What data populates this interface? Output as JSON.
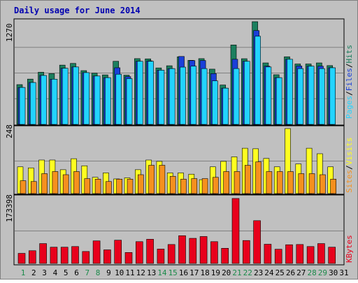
{
  "chart_data": {
    "title": "Daily usage for June 2014",
    "type": "bar",
    "days": [
      1,
      2,
      3,
      4,
      5,
      6,
      7,
      8,
      9,
      10,
      11,
      12,
      13,
      14,
      15,
      16,
      17,
      18,
      19,
      20,
      21,
      22,
      23,
      24,
      25,
      26,
      27,
      28,
      29,
      30,
      31
    ],
    "weekend_days": [
      1,
      7,
      8,
      14,
      15,
      21,
      22,
      28,
      29
    ],
    "top": {
      "ymax_label": "1270",
      "ymax": 1270,
      "legend": [
        "Pages",
        "/",
        "Files",
        "/",
        "Hits"
      ],
      "series": [
        {
          "name": "Hits",
          "color": "#1b7f5e",
          "values": [
            492,
            560,
            645,
            627,
            733,
            754,
            665,
            633,
            612,
            780,
            609,
            813,
            810,
            698,
            725,
            836,
            792,
            813,
            683,
            487,
            982,
            812,
            1270,
            760,
            614,
            836,
            747,
            747,
            760,
            727,
            0
          ]
        },
        {
          "name": "Files",
          "color": "#1a3fd9",
          "values": [
            457,
            518,
            605,
            559,
            694,
            710,
            640,
            598,
            578,
            700,
            590,
            780,
            785,
            670,
            690,
            840,
            789,
            790,
            628,
            448,
            805,
            780,
            1160,
            720,
            578,
            805,
            722,
            720,
            720,
            700,
            0
          ]
        },
        {
          "name": "Pages",
          "color": "#22d3ff",
          "values": [
            457,
            518,
            605,
            559,
            694,
            710,
            640,
            598,
            578,
            620,
            566,
            780,
            780,
            670,
            690,
            708,
            720,
            690,
            538,
            448,
            690,
            780,
            1090,
            710,
            578,
            805,
            690,
            720,
            690,
            700,
            0
          ]
        }
      ]
    },
    "middle": {
      "ymax_label": "248",
      "ymax": 248,
      "legend": [
        "Sites",
        "/",
        "Visits"
      ],
      "series": [
        {
          "name": "Visits",
          "color": "#ffff20",
          "values": [
            102,
            98,
            128,
            128,
            91,
            133,
            106,
            62,
            79,
            56,
            60,
            91,
            128,
            123,
            79,
            79,
            74,
            53,
            102,
            123,
            140,
            173,
            171,
            134,
            102,
            248,
            113,
            173,
            152,
            102,
            0
          ]
        },
        {
          "name": "Sites",
          "color": "#f5901e",
          "values": [
            49,
            46,
            76,
            84,
            72,
            84,
            57,
            55,
            46,
            55,
            55,
            72,
            108,
            108,
            66,
            55,
            57,
            57,
            62,
            84,
            84,
            108,
            121,
            84,
            84,
            84,
            76,
            76,
            72,
            55,
            0
          ]
        }
      ]
    },
    "bottom": {
      "ymax_label": "173398",
      "ymax": 173398,
      "legend": [
        "KBytes"
      ],
      "series": [
        {
          "name": "KBytes",
          "color": "#e8001c",
          "values": [
            26940,
            33990,
            53020,
            43390,
            43390,
            45130,
            31930,
            60210,
            36320,
            62010,
            29260,
            58180,
            64540,
            38340,
            50560,
            74070,
            67050,
            71880,
            58180,
            40460,
            173398,
            61160,
            114120,
            51280,
            37850,
            49920,
            50560,
            45130,
            53020,
            43390,
            0
          ]
        }
      ]
    }
  }
}
